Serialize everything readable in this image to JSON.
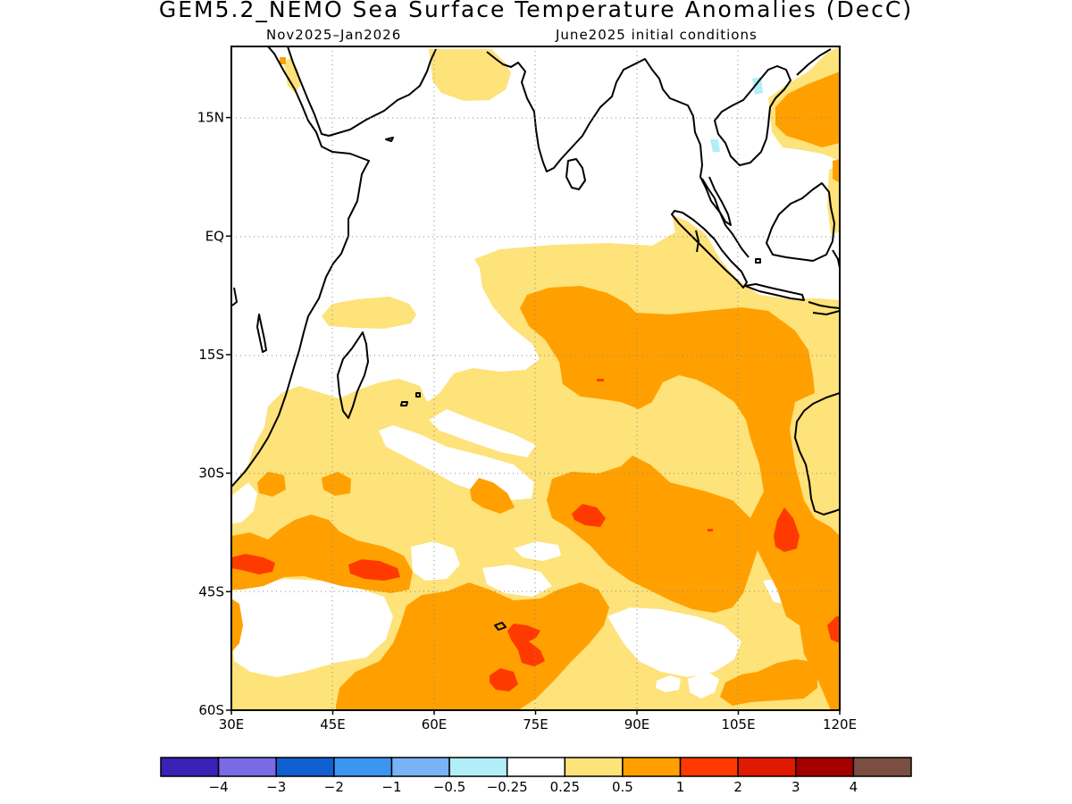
{
  "title": "GEM5.2_NEMO Sea Surface Temperature Anomalies (DecC)",
  "subtitle_left": "Nov2025–Jan2026",
  "subtitle_right": "June2025 initial conditions",
  "map": {
    "projection": "lat-lon",
    "lon_range": [
      30,
      120
    ],
    "lat_range": [
      -60,
      24
    ],
    "lat_ticks": [
      {
        "value": 15,
        "label": "15N"
      },
      {
        "value": 0,
        "label": "EQ"
      },
      {
        "value": -15,
        "label": "15S"
      },
      {
        "value": -30,
        "label": "30S"
      },
      {
        "value": -45,
        "label": "45S"
      },
      {
        "value": -60,
        "label": "60S"
      }
    ],
    "lon_ticks": [
      {
        "value": 30,
        "label": "30E"
      },
      {
        "value": 45,
        "label": "45E"
      },
      {
        "value": 60,
        "label": "60E"
      },
      {
        "value": 75,
        "label": "75E"
      },
      {
        "value": 90,
        "label": "90E"
      },
      {
        "value": 105,
        "label": "105E"
      },
      {
        "value": 120,
        "label": "120E"
      }
    ],
    "grid": true,
    "grid_style": "dotted"
  },
  "colorbar": {
    "colors": [
      "#3a20b4",
      "#7a6ae6",
      "#1060d2",
      "#3c96f0",
      "#78b4f5",
      "#b2eef8",
      "#ffffff",
      "#fee27a",
      "#ffa000",
      "#ff3a00",
      "#e01a00",
      "#a50000",
      "#7a4e40"
    ],
    "labels": [
      "−4",
      "−3",
      "−2",
      "−1",
      "−0.5",
      "−0.25",
      "0.25",
      "0.5",
      "1",
      "2",
      "3",
      "4"
    ]
  },
  "anomaly_colors": {
    "0.25-0.5": "#fee27a",
    "0.5-1": "#ffa000",
    "1-2": "#ff3a00",
    "-0.25--0.5": "#b2eef8"
  }
}
